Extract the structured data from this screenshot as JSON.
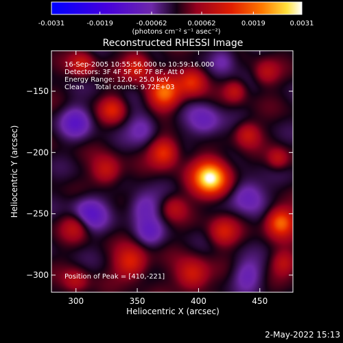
{
  "chart_data": {
    "type": "heatmap",
    "title": "Reconstructed RHESSI Image",
    "xlabel": "Heliocentric X (arcsec)",
    "ylabel": "Heliocentric Y (arcsec)",
    "xlim": [
      280,
      477
    ],
    "ylim": [
      -314,
      -117
    ],
    "x_ticks": [
      300,
      350,
      400,
      450
    ],
    "y_ticks": [
      -150,
      -200,
      -250,
      -300
    ],
    "colorbar": {
      "unit_label": "(photons cm⁻² s⁻¹ asec⁻²)",
      "range": [
        -0.0031,
        0.0031
      ],
      "ticks": [
        -0.0031,
        -0.0019,
        -0.00062,
        0.00062,
        0.0019,
        0.0031
      ],
      "tick_labels": [
        "-0.0031",
        "-0.0019",
        "-0.00062",
        "0.00062",
        "0.0019",
        "0.0031"
      ]
    },
    "annotations": [
      "16-Sep-2005 10:55:56.000 to 10:59:16.000",
      "Detectors: 3F 4F 5F 6F 7F 8F, Att 0",
      "Energy Range: 12.0 - 25.0 keV",
      "Clean     Total counts: 9.72E+03"
    ],
    "peak_label": "Position of Peak = [410,-221]",
    "peak": {
      "x": 410,
      "y": -221,
      "value": 0.0031
    },
    "blobs": [
      {
        "x": 410,
        "y": -221,
        "v": 0.0031,
        "s": 10
      },
      {
        "x": 372,
        "y": -152,
        "v": 0.0019,
        "s": 9
      },
      {
        "x": 395,
        "y": -142,
        "v": 0.0015,
        "s": 8
      },
      {
        "x": 350,
        "y": -130,
        "v": 0.0013,
        "s": 8
      },
      {
        "x": 330,
        "y": -165,
        "v": 0.0012,
        "s": 7
      },
      {
        "x": 372,
        "y": -200,
        "v": 0.0016,
        "s": 8
      },
      {
        "x": 325,
        "y": -215,
        "v": 0.0011,
        "s": 8
      },
      {
        "x": 440,
        "y": -185,
        "v": 0.001,
        "s": 7
      },
      {
        "x": 455,
        "y": -135,
        "v": 0.0008,
        "s": 7
      },
      {
        "x": 465,
        "y": -205,
        "v": 0.0009,
        "s": 6
      },
      {
        "x": 430,
        "y": -150,
        "v": 0.0009,
        "s": 6
      },
      {
        "x": 300,
        "y": -260,
        "v": 0.001,
        "s": 8
      },
      {
        "x": 345,
        "y": -290,
        "v": 0.0014,
        "s": 9
      },
      {
        "x": 395,
        "y": -300,
        "v": 0.0013,
        "s": 9
      },
      {
        "x": 420,
        "y": -265,
        "v": 0.0011,
        "s": 8
      },
      {
        "x": 467,
        "y": -257,
        "v": 0.002,
        "s": 8
      },
      {
        "x": 470,
        "y": -290,
        "v": 0.0009,
        "s": 7
      },
      {
        "x": 305,
        "y": -128,
        "v": 0.0011,
        "s": 7
      },
      {
        "x": 380,
        "y": -245,
        "v": 0.0007,
        "s": 7
      },
      {
        "x": 300,
        "y": -305,
        "v": 0.0008,
        "s": 7
      },
      {
        "x": 300,
        "y": -175,
        "v": -0.001,
        "s": 9
      },
      {
        "x": 310,
        "y": -250,
        "v": -0.0012,
        "s": 10
      },
      {
        "x": 355,
        "y": -180,
        "v": -0.0008,
        "s": 9
      },
      {
        "x": 405,
        "y": -175,
        "v": -0.0009,
        "s": 10
      },
      {
        "x": 440,
        "y": -235,
        "v": -0.001,
        "s": 10
      },
      {
        "x": 355,
        "y": -245,
        "v": -0.0009,
        "s": 9
      },
      {
        "x": 420,
        "y": -125,
        "v": -0.0008,
        "s": 8
      },
      {
        "x": 440,
        "y": -300,
        "v": -0.0008,
        "s": 9
      },
      {
        "x": 360,
        "y": -265,
        "v": -0.0007,
        "s": 8
      }
    ]
  },
  "timestamp": "2-May-2022 15:13",
  "colors": {
    "background": "#000000",
    "text": "#ffffff"
  }
}
